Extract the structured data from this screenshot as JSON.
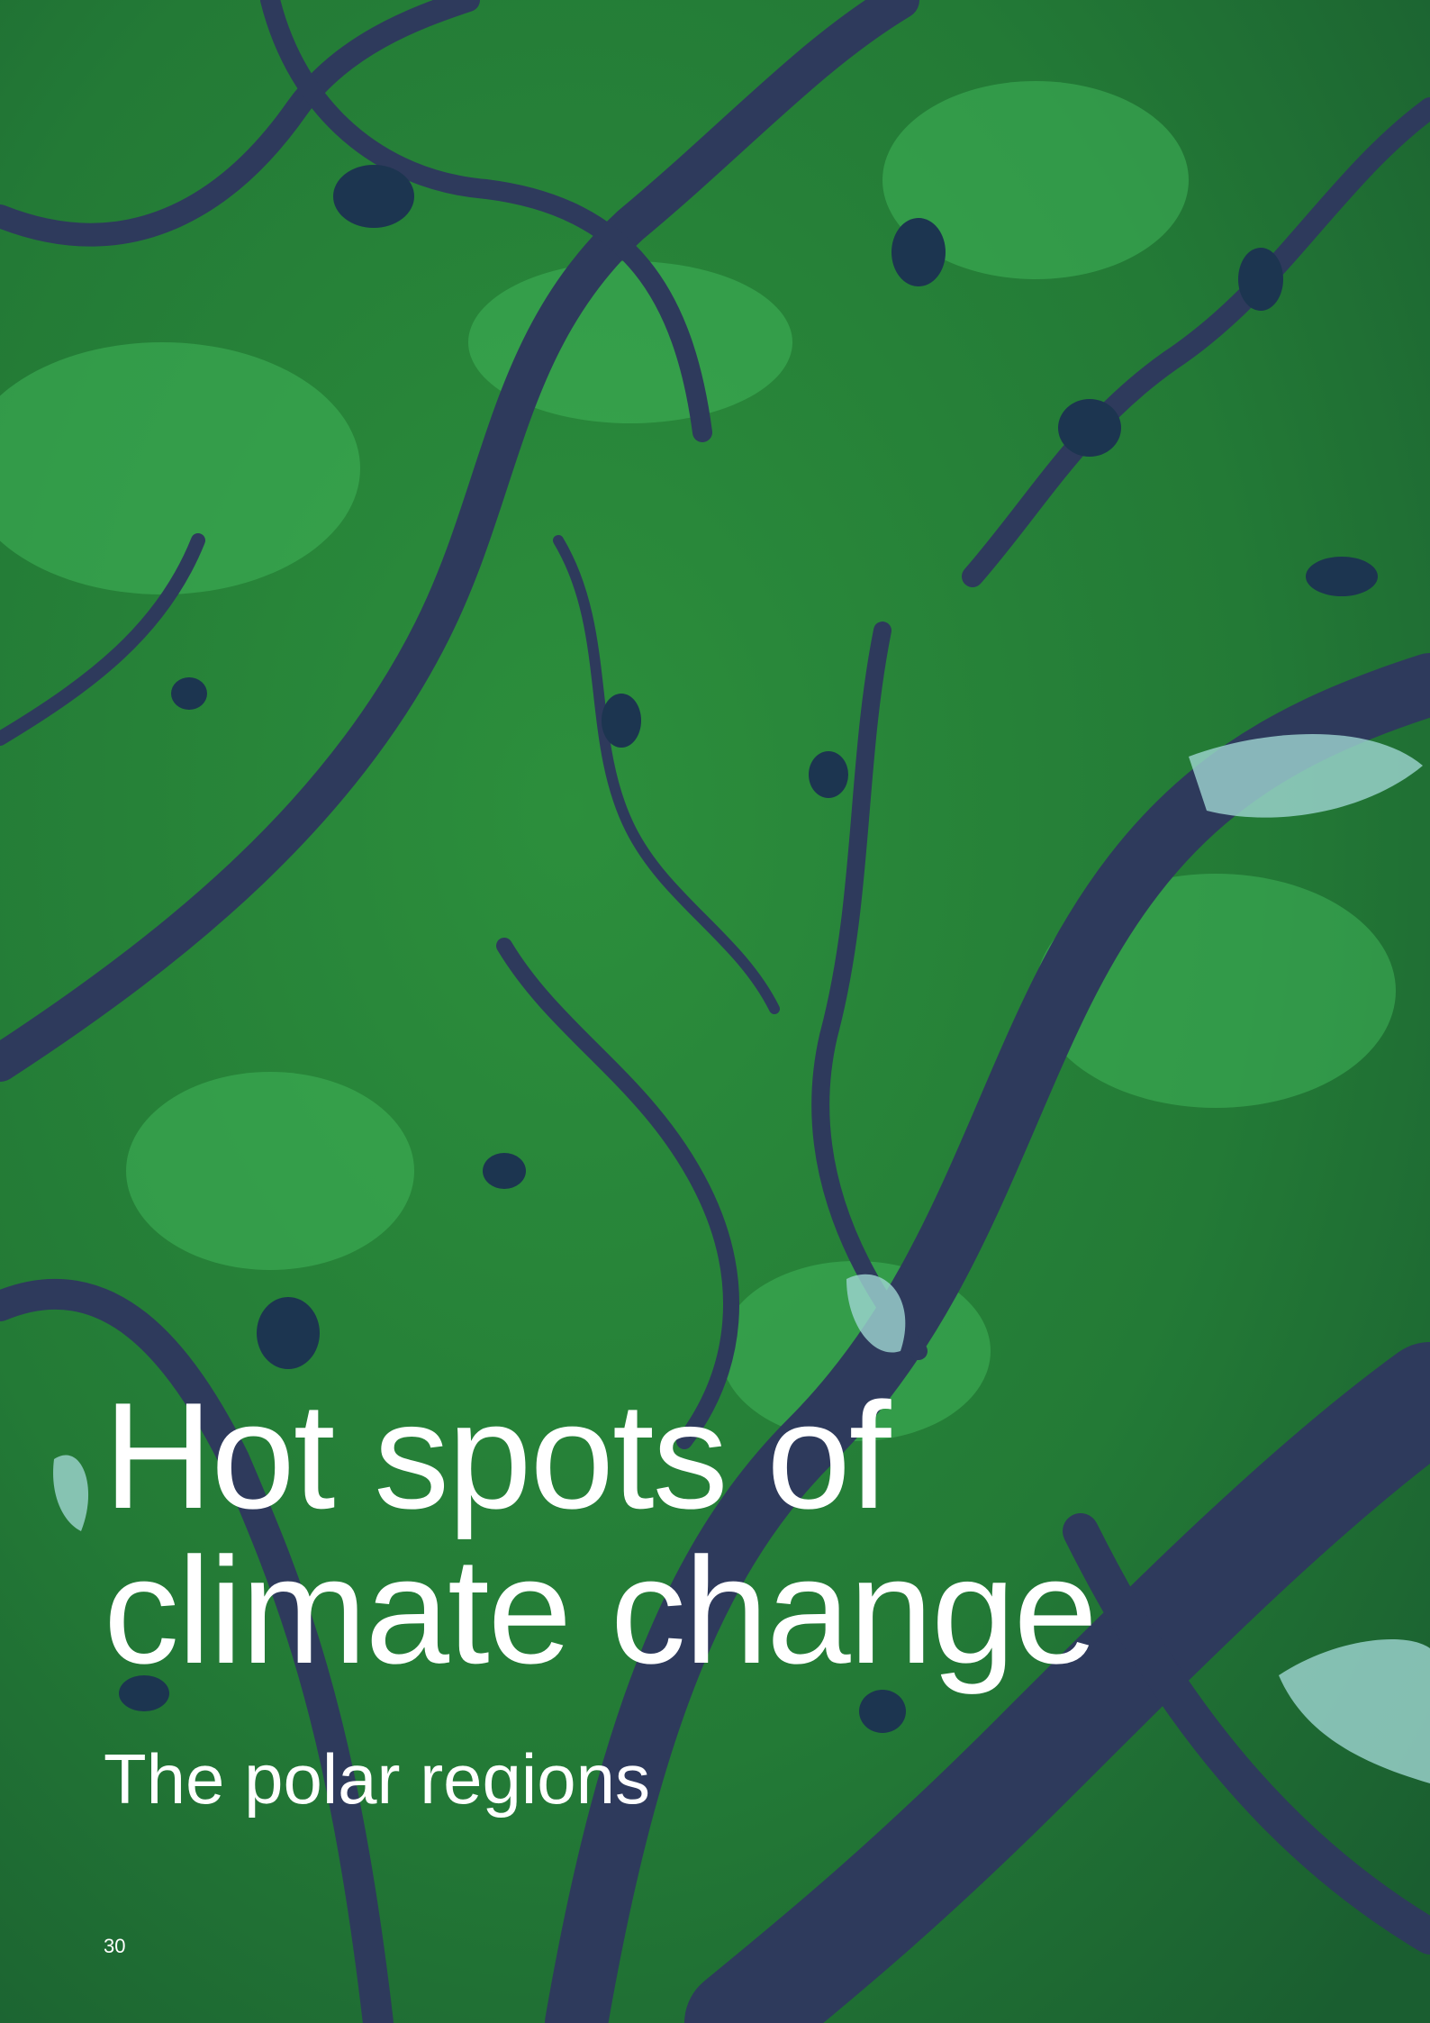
{
  "page": {
    "title_lines": [
      "Hot spots of",
      "climate change"
    ],
    "subtitle": "The polar regions",
    "page_number": "30"
  }
}
